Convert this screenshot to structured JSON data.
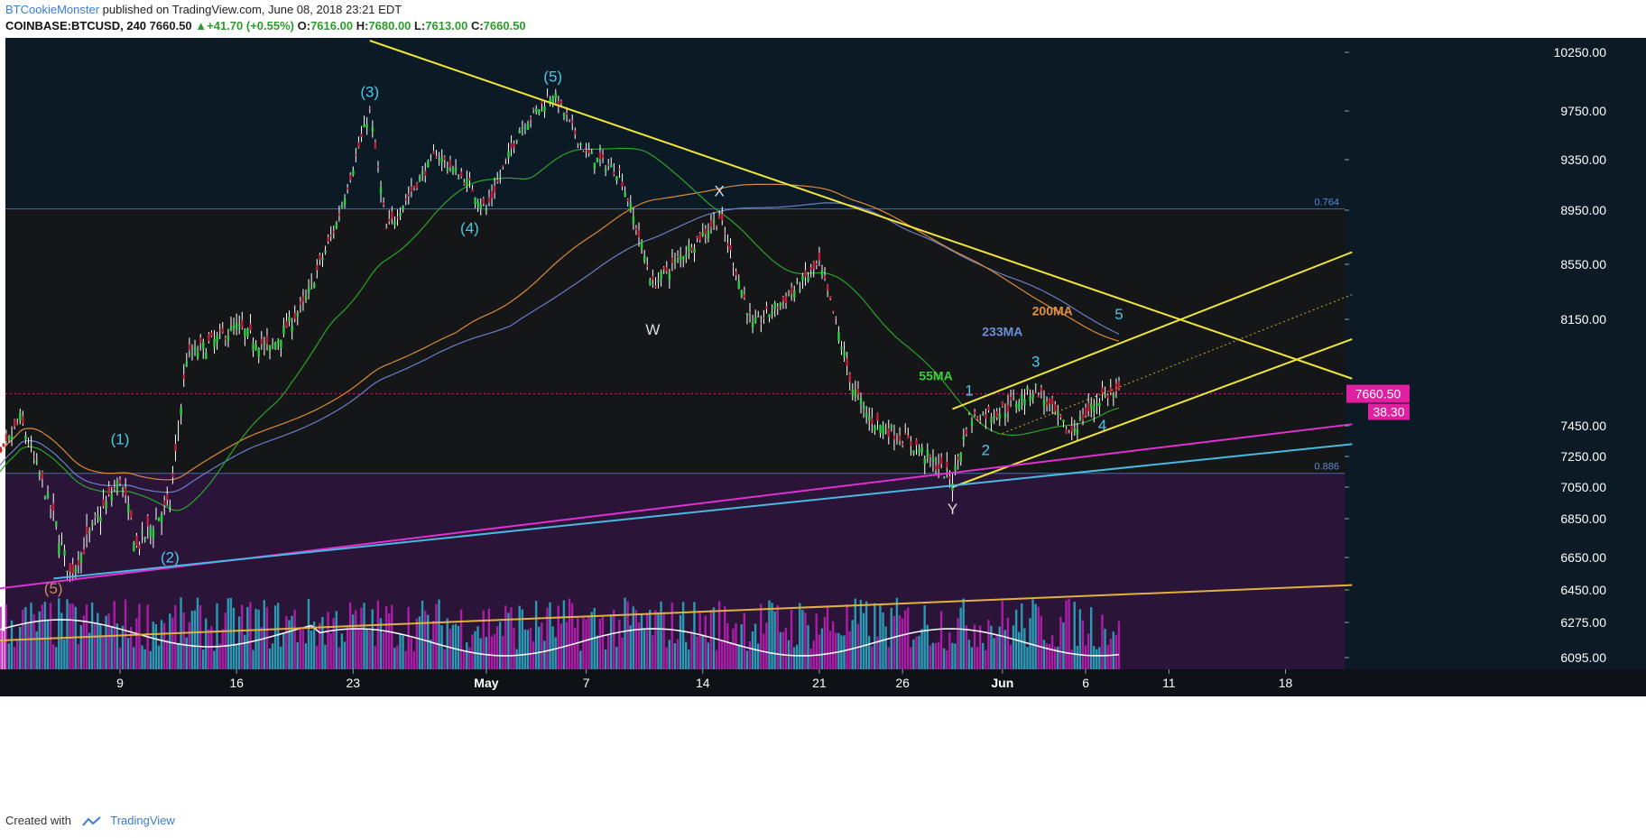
{
  "header": {
    "author": "BTCookieMonster",
    "published_text": "published on TradingView.com, June 08, 2018 23:21 EDT",
    "symbol": "COINBASE:BTCUSD, 240",
    "price": "7660.50",
    "change": "▲+41.70 (+0.55%)",
    "o_label": "O:",
    "o_value": "7616.00",
    "h_label": "H:",
    "h_value": "7680.00",
    "l_label": "L:",
    "l_value": "7613.00",
    "c_label": "C:",
    "c_value": "7660.50"
  },
  "footer": {
    "created_with": "Created with",
    "brand": "TradingView"
  },
  "colors": {
    "bg_top": "#0b1a25",
    "bg_mid": "#151617",
    "bg_bottom": "#2a1539",
    "candle_up": "#2ecc40",
    "candle_down": "#c0203a",
    "wick": "#ffffff",
    "ma55": "#2aa52a",
    "ma200": "#d98b3a",
    "ma233": "#6b7fc9",
    "trend_yellow": "#f0e63a",
    "magenta": "#e030d0",
    "cyan": "#4ab8e0",
    "orange_line": "#e0b040",
    "vol_cyan": "#2ab0c8",
    "vol_magenta": "#c020b8"
  },
  "chart_data": {
    "type": "candlestick",
    "title": "",
    "x_ticks": [
      "9",
      "16",
      "23",
      "May",
      "7",
      "14",
      "21",
      "26",
      "Jun",
      "6",
      "11",
      "18"
    ],
    "y_ticks": [
      "10250.00",
      "9750.00",
      "9350.00",
      "8950.00",
      "8550.00",
      "8150.00",
      "7450.00",
      "7250.00",
      "7050.00",
      "6850.00",
      "6650.00",
      "6450.00",
      "6275.00",
      "6095.00"
    ],
    "ylim": [
      6000,
      10350
    ],
    "current_price_label": "7660.50",
    "countdown_label": "38.30",
    "fib_levels": [
      {
        "label": "0.764",
        "value": 8960
      },
      {
        "label": "0.886",
        "value": 7140
      }
    ],
    "ma_labels": [
      "55MA",
      "200MA",
      "233MA"
    ],
    "wave_labels": [
      "(5)",
      "(1)",
      "(2)",
      "(3)",
      "(4)",
      "(5)",
      "W",
      "X",
      "Y",
      "1",
      "2",
      "3",
      "4",
      "5"
    ],
    "price_path": [
      {
        "date": "2018-04-01",
        "price": 7050
      },
      {
        "date": "2018-04-03",
        "price": 7500
      },
      {
        "date": "2018-04-06",
        "price": 6550
      },
      {
        "date": "2018-04-09",
        "price": 7100
      },
      {
        "date": "2018-04-10",
        "price": 6700
      },
      {
        "date": "2018-04-12",
        "price": 6950
      },
      {
        "date": "2018-04-13",
        "price": 7900
      },
      {
        "date": "2018-04-16",
        "price": 8100
      },
      {
        "date": "2018-04-18",
        "price": 7950
      },
      {
        "date": "2018-04-20",
        "price": 8250
      },
      {
        "date": "2018-04-22",
        "price": 8850
      },
      {
        "date": "2018-04-24",
        "price": 9750
      },
      {
        "date": "2018-04-25",
        "price": 8800
      },
      {
        "date": "2018-04-28",
        "price": 9400
      },
      {
        "date": "2018-04-30",
        "price": 9150
      },
      {
        "date": "2018-05-01",
        "price": 8950
      },
      {
        "date": "2018-05-03",
        "price": 9600
      },
      {
        "date": "2018-05-05",
        "price": 9900
      },
      {
        "date": "2018-05-07",
        "price": 9400
      },
      {
        "date": "2018-05-09",
        "price": 9250
      },
      {
        "date": "2018-05-11",
        "price": 8400
      },
      {
        "date": "2018-05-13",
        "price": 8650
      },
      {
        "date": "2018-05-15",
        "price": 8900
      },
      {
        "date": "2018-05-17",
        "price": 8100
      },
      {
        "date": "2018-05-19",
        "price": 8300
      },
      {
        "date": "2018-05-21",
        "price": 8550
      },
      {
        "date": "2018-05-23",
        "price": 7700
      },
      {
        "date": "2018-05-24",
        "price": 7500
      },
      {
        "date": "2018-05-27",
        "price": 7300
      },
      {
        "date": "2018-05-29",
        "price": 7100
      },
      {
        "date": "2018-05-30",
        "price": 7500
      },
      {
        "date": "2018-06-01",
        "price": 7550
      },
      {
        "date": "2018-06-03",
        "price": 7700
      },
      {
        "date": "2018-06-05",
        "price": 7400
      },
      {
        "date": "2018-06-07",
        "price": 7650
      },
      {
        "date": "2018-06-08",
        "price": 7660
      }
    ]
  }
}
